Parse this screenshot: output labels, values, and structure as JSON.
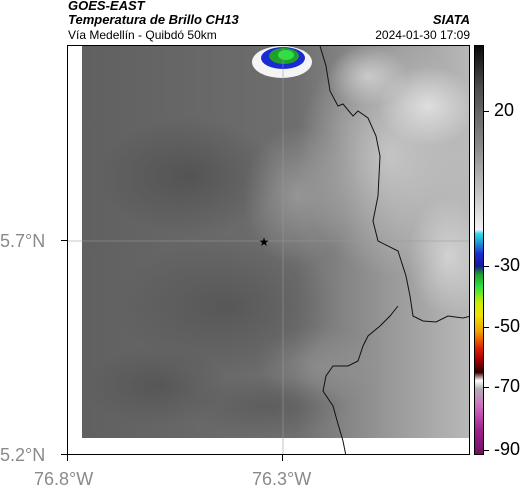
{
  "header": {
    "satellite": "GOES-EAST",
    "product": "Temperatura de Brillo CH13",
    "route": "Vía Medellín - Quibdó 50km",
    "organization": "SIATA",
    "timestamp": "2024-01-30 17:09"
  },
  "axes": {
    "latitude_labels": [
      "5.7°N",
      "5.2°N"
    ],
    "longitude_labels": [
      "76.8°W",
      "76.3°W"
    ]
  },
  "colorbar": {
    "tick_labels": [
      "20",
      "-30",
      "-50",
      "-70",
      "-90"
    ]
  },
  "marker": {
    "icon": "star-icon"
  },
  "colors": {
    "background_cloud": "#7a7a7a",
    "cold_cloud_core": "#2fe040",
    "deep_convection": "#1a2bd4"
  }
}
